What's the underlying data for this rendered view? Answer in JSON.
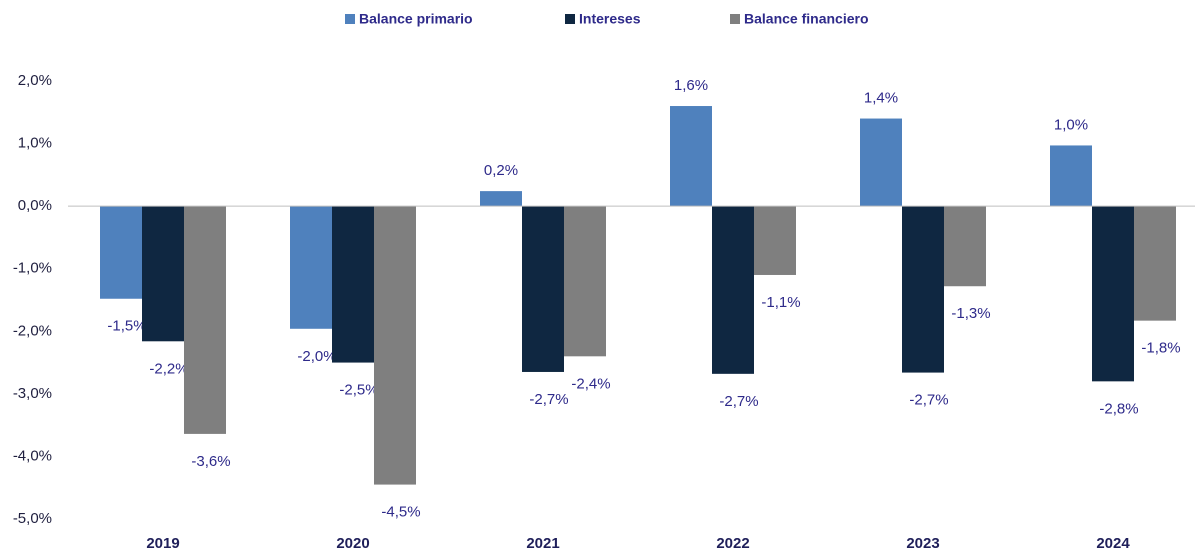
{
  "chart_data": {
    "type": "bar",
    "categories": [
      "2019",
      "2020",
      "2021",
      "2022",
      "2023",
      "2024"
    ],
    "series": [
      {
        "name": "Balance primario",
        "color": "#4f81bd",
        "values": [
          -1.48,
          -1.96,
          0.24,
          1.6,
          1.4,
          0.97
        ],
        "value_labels": [
          "-1,5%",
          "-2,0%",
          "0,2%",
          "1,6%",
          "1,4%",
          "1,0%"
        ]
      },
      {
        "name": "Intereses",
        "color": "#0f2741",
        "values": [
          -2.16,
          -2.5,
          -2.65,
          -2.68,
          -2.66,
          -2.8
        ],
        "value_labels": [
          "-2,2%",
          "-2,5%",
          "-2,7%",
          "-2,7%",
          "-2,7%",
          "-2,8%"
        ]
      },
      {
        "name": "Balance financiero",
        "color": "#7f7f7f",
        "values": [
          -3.64,
          -4.45,
          -2.4,
          -1.1,
          -1.28,
          -1.83
        ],
        "value_labels": [
          "-3,6%",
          "-4,5%",
          "-2,4%",
          "-1,1%",
          "-1,3%",
          "-1,8%"
        ]
      }
    ],
    "ylim": [
      -5,
      2
    ],
    "yticks": [
      {
        "value": -5,
        "label": "-5,0%"
      },
      {
        "value": -4,
        "label": "-4,0%"
      },
      {
        "value": -3,
        "label": "-3,0%"
      },
      {
        "value": -2,
        "label": "-2,0%"
      },
      {
        "value": -1,
        "label": "-1,0%"
      },
      {
        "value": 0,
        "label": "0,0%"
      },
      {
        "value": 1,
        "label": "1,0%"
      },
      {
        "value": 2,
        "label": "2,0%"
      }
    ],
    "legend": "top",
    "grid": false
  }
}
